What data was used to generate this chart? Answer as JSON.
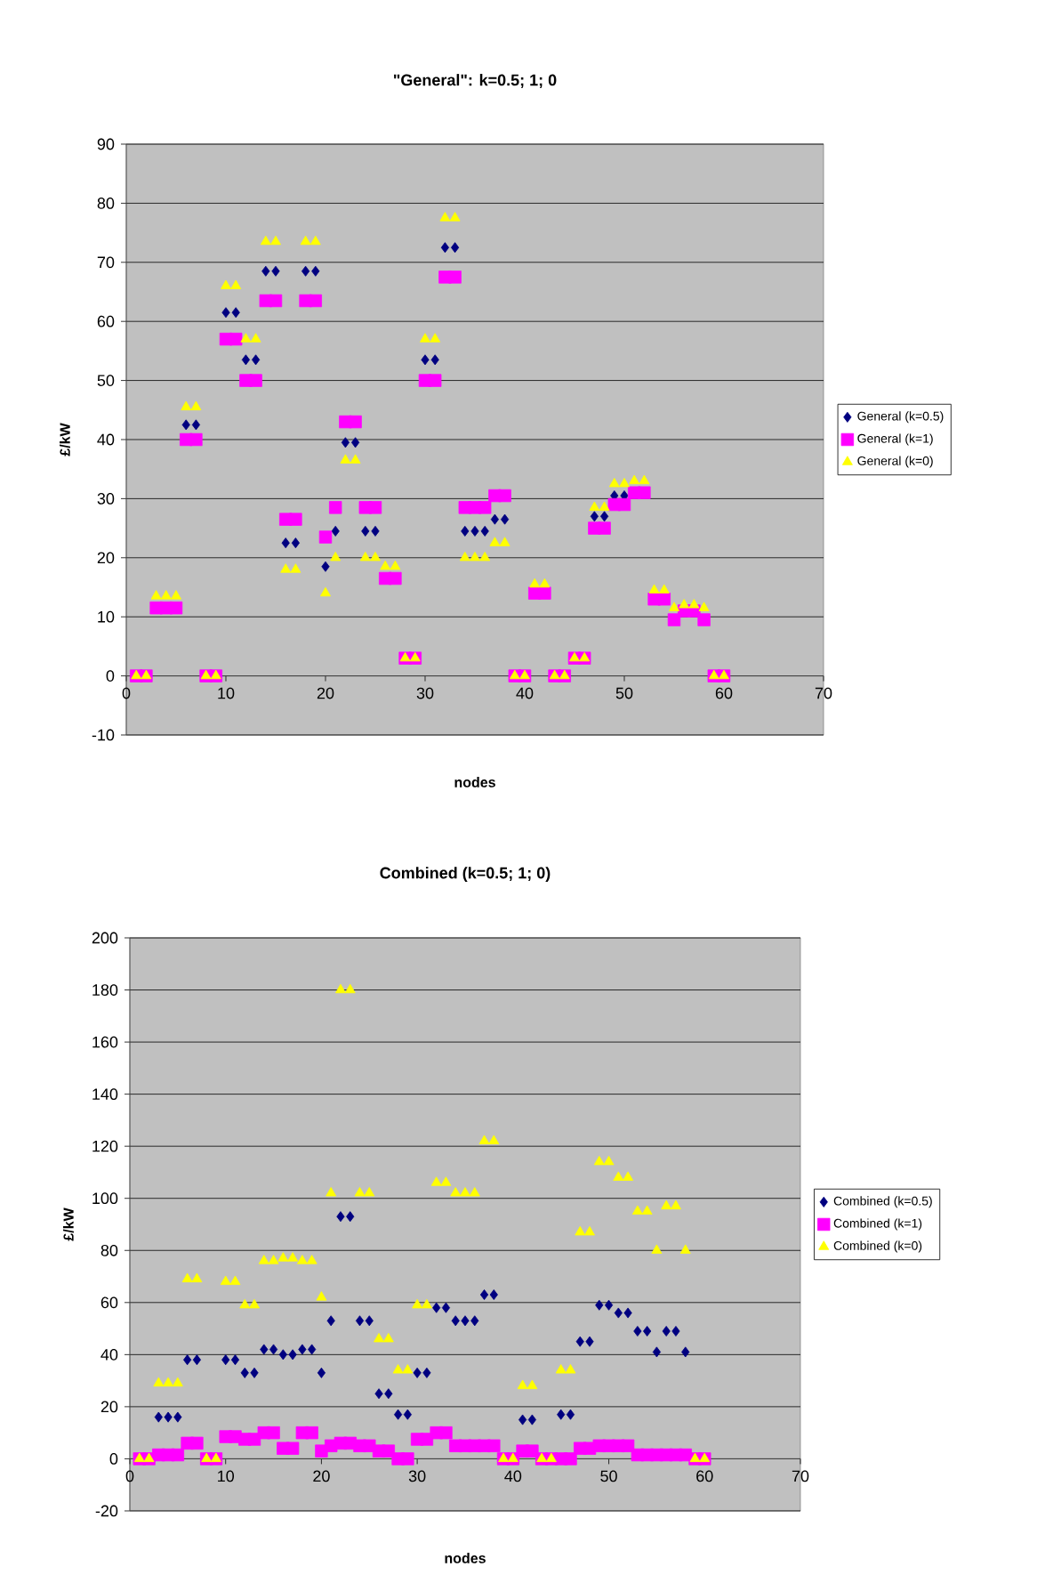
{
  "chart_data": [
    {
      "type": "scatter",
      "title": "\"General\": k=0.5; 1; 0",
      "xlabel": "nodes",
      "ylabel": "£/kW",
      "xlim": [
        0,
        70
      ],
      "xticks": [
        0,
        10,
        20,
        30,
        40,
        50,
        60,
        70
      ],
      "ylim": [
        -10,
        90
      ],
      "yticks": [
        -10,
        0,
        10,
        20,
        30,
        40,
        50,
        60,
        70,
        80,
        90
      ],
      "grid": "y",
      "legend": "right",
      "x": [
        1,
        2,
        3,
        4,
        5,
        6,
        7,
        8,
        9,
        10,
        11,
        12,
        13,
        14,
        15,
        16,
        17,
        18,
        19,
        20,
        21,
        22,
        23,
        24,
        25,
        26,
        27,
        28,
        29,
        30,
        31,
        32,
        33,
        34,
        35,
        36,
        37,
        38,
        39,
        40,
        41,
        42,
        43,
        44,
        45,
        46,
        47,
        48,
        49,
        50,
        51,
        52,
        53,
        54,
        55,
        56,
        57,
        58,
        59,
        60
      ],
      "series": [
        {
          "name": "General (k=0.5)",
          "color": "#000080",
          "marker": "diamond",
          "values": [
            null,
            null,
            null,
            null,
            null,
            42.5,
            42.5,
            null,
            null,
            61.5,
            61.5,
            53.5,
            53.5,
            68.5,
            68.5,
            22.5,
            22.5,
            68.5,
            68.5,
            18.5,
            24.5,
            39.5,
            39.5,
            24.5,
            24.5,
            null,
            null,
            null,
            null,
            53.5,
            53.5,
            72.5,
            72.5,
            24.5,
            24.5,
            24.5,
            26.5,
            26.5,
            null,
            null,
            null,
            null,
            null,
            null,
            null,
            null,
            27,
            27,
            30.5,
            30.5,
            null,
            null,
            null,
            null,
            null,
            null,
            null,
            null,
            null,
            null
          ]
        },
        {
          "name": "General (k=1)",
          "color": "#ff00ff",
          "marker": "square",
          "values": [
            0,
            0,
            11.5,
            11.5,
            11.5,
            40,
            40,
            0,
            0,
            57,
            57,
            50,
            50,
            63.5,
            63.5,
            26.5,
            26.5,
            63.5,
            63.5,
            23.5,
            28.5,
            43,
            43,
            28.5,
            28.5,
            16.5,
            16.5,
            3,
            3,
            50,
            50,
            67.5,
            67.5,
            28.5,
            28.5,
            28.5,
            30.5,
            30.5,
            0,
            0,
            14,
            14,
            0,
            0,
            3,
            3,
            25,
            25,
            29,
            29,
            31,
            31,
            13,
            13,
            9.5,
            11,
            11,
            9.5,
            0,
            0
          ]
        },
        {
          "name": "General (k=0)",
          "color": "#ffff00",
          "marker": "triangle",
          "values": [
            0,
            0,
            13.5,
            13.5,
            13.5,
            45.5,
            45.5,
            0,
            0,
            66,
            66,
            57,
            57,
            73.5,
            73.5,
            18,
            18,
            73.5,
            73.5,
            14,
            20,
            36.5,
            36.5,
            20,
            20,
            18.5,
            18.5,
            3,
            3,
            57,
            57,
            77.5,
            77.5,
            20,
            20,
            20,
            22.5,
            22.5,
            0,
            0,
            15.5,
            15.5,
            0,
            0,
            3,
            3,
            28.5,
            28.5,
            32.5,
            32.5,
            33,
            33,
            14.5,
            14.5,
            11.5,
            12,
            12,
            11.5,
            0,
            0
          ]
        }
      ]
    },
    {
      "type": "scatter",
      "title": "Combined (k=0.5; 1; 0)",
      "xlabel": "nodes",
      "ylabel": "£/kW",
      "xlim": [
        0,
        70
      ],
      "xticks": [
        0,
        10,
        20,
        30,
        40,
        50,
        60,
        70
      ],
      "ylim": [
        -20,
        200
      ],
      "yticks": [
        -20,
        0,
        20,
        40,
        60,
        80,
        100,
        120,
        140,
        160,
        180,
        200
      ],
      "grid": "y",
      "legend": "right",
      "x": [
        1,
        2,
        3,
        4,
        5,
        6,
        7,
        8,
        9,
        10,
        11,
        12,
        13,
        14,
        15,
        16,
        17,
        18,
        19,
        20,
        21,
        22,
        23,
        24,
        25,
        26,
        27,
        28,
        29,
        30,
        31,
        32,
        33,
        34,
        35,
        36,
        37,
        38,
        39,
        40,
        41,
        42,
        43,
        44,
        45,
        46,
        47,
        48,
        49,
        50,
        51,
        52,
        53,
        54,
        55,
        56,
        57,
        58,
        59,
        60
      ],
      "series": [
        {
          "name": "Combined (k=0.5)",
          "color": "#000080",
          "marker": "diamond",
          "values": [
            null,
            null,
            16,
            16,
            16,
            38,
            38,
            null,
            null,
            38,
            38,
            33,
            33,
            42,
            42,
            40,
            40,
            42,
            42,
            33,
            53,
            93,
            93,
            53,
            53,
            25,
            25,
            17,
            17,
            33,
            33,
            58,
            58,
            53,
            53,
            53,
            63,
            63,
            null,
            null,
            15,
            15,
            null,
            null,
            17,
            17,
            45,
            45,
            59,
            59,
            56,
            56,
            49,
            49,
            41,
            49,
            49,
            41,
            null,
            null
          ]
        },
        {
          "name": "Combined (k=1)",
          "color": "#ff00ff",
          "marker": "square",
          "values": [
            0,
            0,
            1.5,
            1.5,
            1.5,
            6,
            6,
            0,
            0,
            8.5,
            8.5,
            7.5,
            7.5,
            10,
            10,
            4,
            4,
            10,
            10,
            3,
            5,
            6,
            6,
            5,
            5,
            3,
            3,
            0,
            0,
            7.5,
            7.5,
            10,
            10,
            5,
            5,
            5,
            5,
            5,
            0,
            0,
            3,
            3,
            0,
            0,
            0,
            0,
            4,
            4,
            5,
            5,
            5,
            5,
            1.5,
            1.5,
            1.5,
            1.5,
            1.5,
            1.5,
            0,
            0
          ]
        },
        {
          "name": "Combined (k=0)",
          "color": "#ffff00",
          "marker": "triangle",
          "values": [
            0,
            0,
            29,
            29,
            29,
            69,
            69,
            0,
            0,
            68,
            68,
            59,
            59,
            76,
            76,
            77,
            77,
            76,
            76,
            62,
            102,
            180,
            180,
            102,
            102,
            46,
            46,
            34,
            34,
            59,
            59,
            106,
            106,
            102,
            102,
            102,
            122,
            122,
            0,
            0,
            28,
            28,
            0,
            0,
            34,
            34,
            87,
            87,
            114,
            114,
            108,
            108,
            95,
            95,
            80,
            97,
            97,
            80,
            0,
            0
          ]
        }
      ]
    }
  ]
}
